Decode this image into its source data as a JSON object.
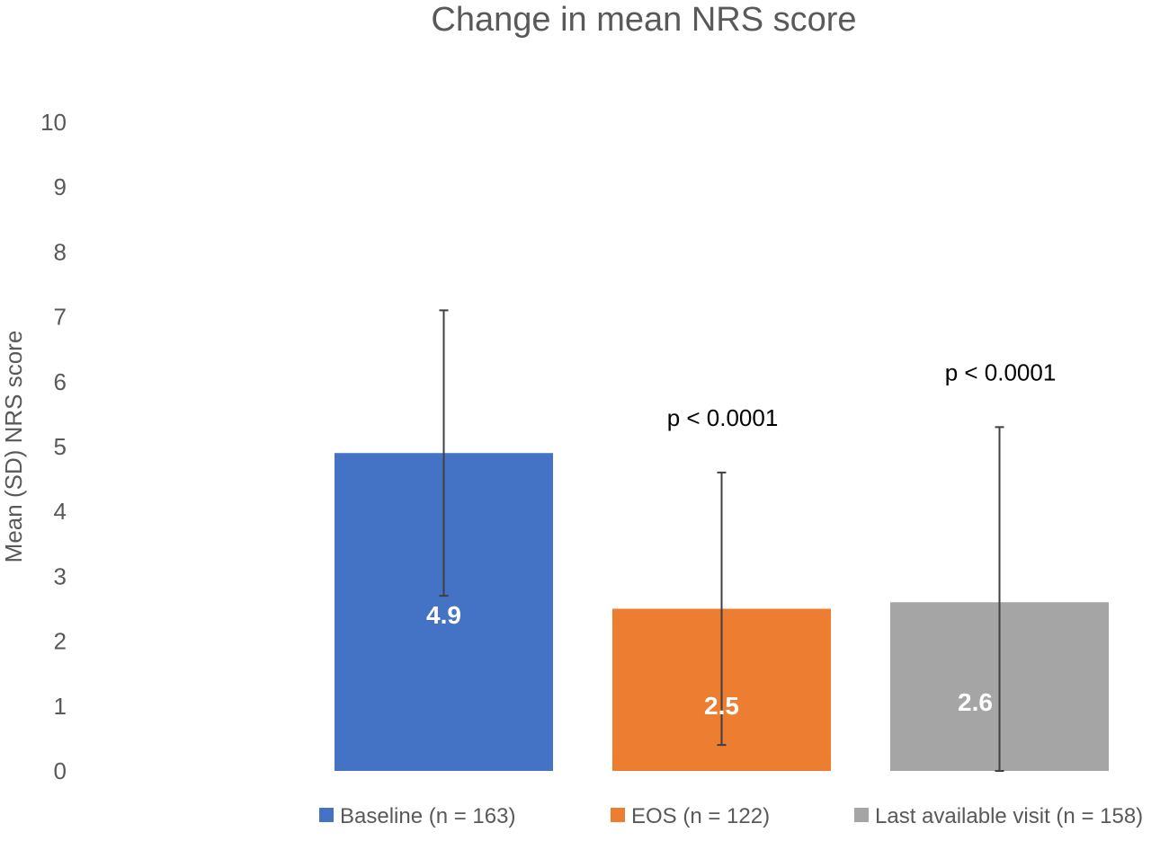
{
  "chart_data": {
    "type": "bar",
    "title": "Change in mean NRS score",
    "ylabel": "Mean (SD) NRS score",
    "xlabel": "",
    "ylim": [
      0,
      10
    ],
    "y_ticks": [
      "0",
      "1",
      "2",
      "3",
      "4",
      "5",
      "6",
      "7",
      "8",
      "9",
      "10"
    ],
    "grid": false,
    "legend_position": "bottom",
    "series": [
      {
        "name": "Baseline (n = 163)",
        "value": 4.9,
        "label": "4.9",
        "error_low": 2.7,
        "error_high": 7.1,
        "color": "#4472C4",
        "annotation": ""
      },
      {
        "name": "EOS (n = 122)",
        "value": 2.5,
        "label": "2.5",
        "error_low": 0.4,
        "error_high": 4.6,
        "color": "#ED7D31",
        "annotation": "p < 0.0001"
      },
      {
        "name": "Last available visit (n = 158)",
        "value": 2.6,
        "label": "2.6",
        "error_low": 0.0,
        "error_high": 5.3,
        "color": "#A5A5A5",
        "annotation": "p < 0.0001"
      }
    ]
  }
}
